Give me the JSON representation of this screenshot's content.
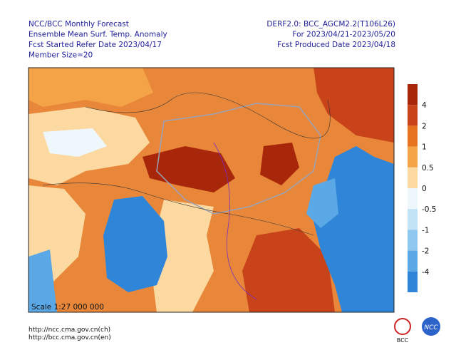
{
  "header": {
    "left": [
      "NCC/BCC Monthly Forecast",
      "Ensemble Mean Surf. Temp. Anomaly",
      "Fcst Started Refer Date 2023/04/17",
      "Member Size=20"
    ],
    "right": [
      "DERF2.0: BCC_AGCM2.2(T106L26)",
      "For 2023/04/21-2023/05/20",
      "Fcst Produced Date 2023/04/18"
    ]
  },
  "map": {
    "scale": "Scale 1:27 000 000"
  },
  "legend": {
    "ticks": [
      4,
      2,
      1,
      0.5,
      0,
      -0.5,
      -1,
      -2,
      -4
    ],
    "colors": [
      "#a8260a",
      "#c8431a",
      "#e8731f",
      "#f4a347",
      "#fcd9a0",
      "#eef7fc",
      "#c2e2f6",
      "#8ec7ef",
      "#5aa8e6",
      "#2f86d8"
    ]
  },
  "footer": {
    "links": [
      "http://ncc.cma.gov.cn(ch)",
      "http://bcc.cma.gov.cn(en)"
    ],
    "logos": [
      "BCC",
      "NCC"
    ]
  }
}
